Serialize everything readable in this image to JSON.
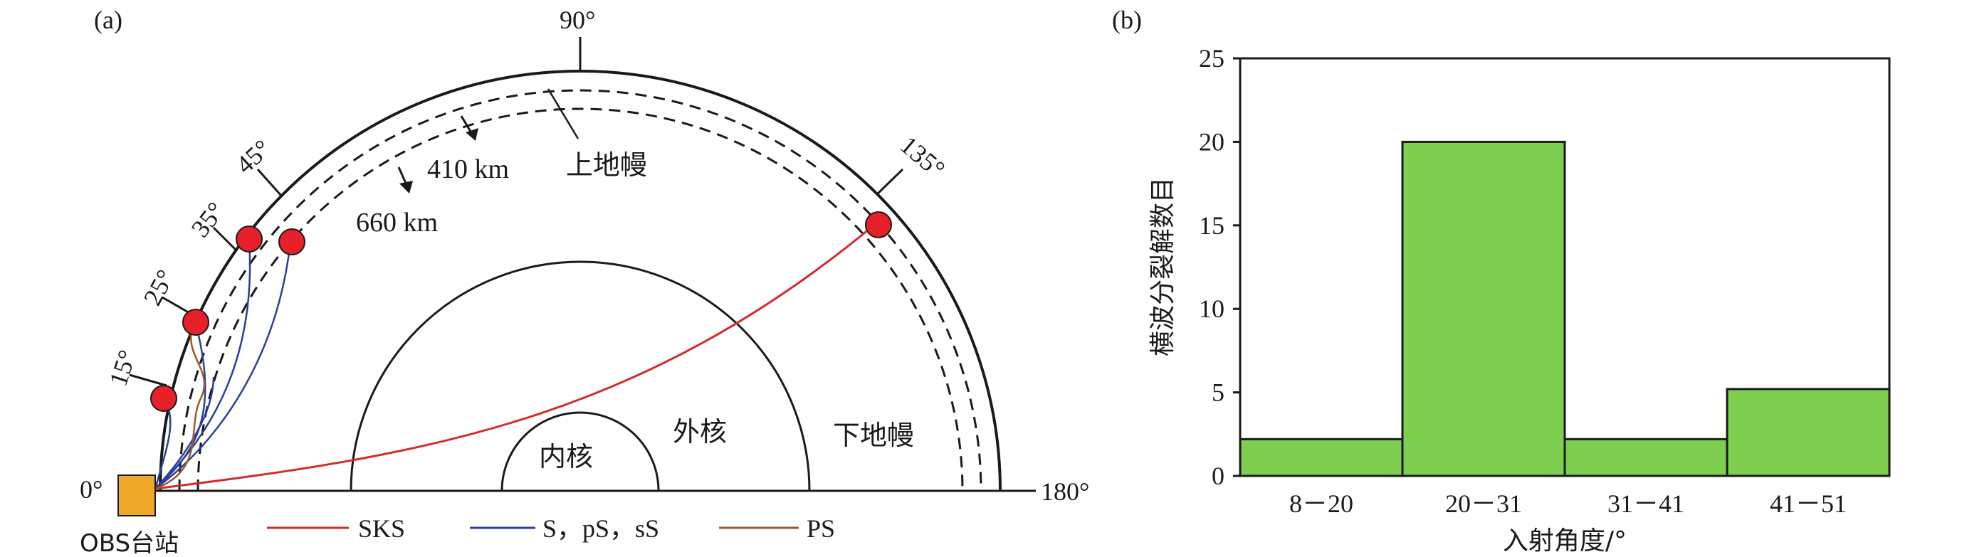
{
  "panel_a": {
    "label": "(a)",
    "angle_labels": [
      "0°",
      "15°",
      "25°",
      "35°",
      "45°",
      "90°",
      "135°",
      "180°"
    ],
    "layer_labels": {
      "d410": "410 km",
      "d660": "660 km",
      "upper_mantle": "上地幔",
      "lower_mantle": "下地幔",
      "outer_core": "外核",
      "inner_core": "内核"
    },
    "station_label": "OBS台站",
    "legend": [
      {
        "label": "SKS",
        "color": "#d42a2a"
      },
      {
        "label": "S，pS，sS",
        "color": "#2a3f9a"
      },
      {
        "label": "PS",
        "color": "#9a5a2a"
      }
    ],
    "colors": {
      "event_marker": "#e8202a",
      "station_marker": "#f0a828",
      "line": "#1a1a1a"
    }
  },
  "panel_b": {
    "label": "(b)",
    "colors": {
      "bar": "#7ecf4f",
      "bar_edge": "#1a1a1a"
    }
  },
  "chart_data": {
    "type": "bar",
    "categories": [
      "8－20",
      "20－31",
      "31－41",
      "41－51"
    ],
    "values": [
      2.2,
      20,
      2.2,
      5.2
    ],
    "xlabel": "入射角度/°",
    "ylabel": "横波分裂解数目",
    "ylim": [
      0,
      25
    ],
    "yticks": [
      0,
      5,
      10,
      15,
      20,
      25
    ],
    "grid": false
  }
}
